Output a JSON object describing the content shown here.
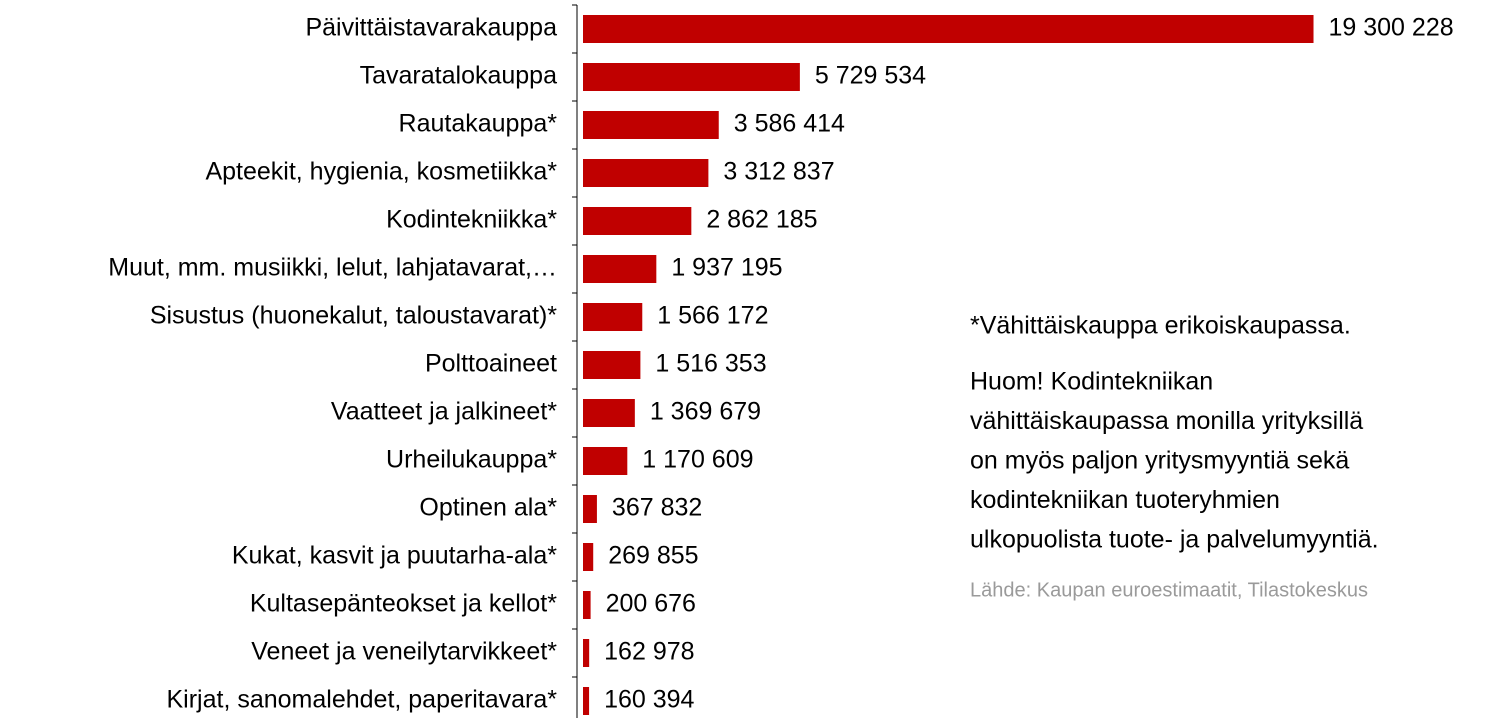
{
  "chart_data": {
    "type": "barh",
    "categories": [
      "Päivittäistavarakauppa",
      "Tavaratalokauppa",
      "Rautakauppa*",
      "Apteekit, hygienia, kosmetiikka*",
      "Kodintekniikka*",
      "Muut, mm. musiikki, lelut, lahjatavarat,…",
      "Sisustus (huonekalut, taloustavarat)*",
      "Polttoaineet",
      "Vaatteet ja jalkineet*",
      "Urheilukauppa*",
      "Optinen ala*",
      "Kukat, kasvit ja puutarha-ala*",
      "Kultasepänteokset ja kellot*",
      "Veneet ja veneilytarvikkeet*",
      "Kirjat, sanomalehdet, paperitavara*"
    ],
    "values": [
      19300228,
      5729534,
      3586414,
      3312837,
      2862185,
      1937195,
      1566172,
      1516353,
      1369679,
      1170609,
      367832,
      269855,
      200676,
      162978,
      160394
    ],
    "value_labels": [
      "19 300 228",
      "5 729 534",
      "3 586 414",
      "3 312 837",
      "2 862 185",
      "1 937 195",
      "1 566 172",
      "1 516 353",
      "1 369 679",
      "1 170 609",
      "367 832",
      "269 855",
      "200 676",
      "162 978",
      "160 394"
    ],
    "color": "#c00000",
    "xlim": [
      0,
      20000000
    ],
    "footnote": "*Vähittäiskauppa erikoiskaupassa.",
    "note_lines": [
      "Huom! Kodintekniikan",
      "vähittäiskaupassa monilla yrityksillä",
      "on myös paljon yritysmyyntiä sekä",
      "kodintekniikan tuoteryhmien",
      "ulkopuolista tuote- ja palvelumyyntiä."
    ],
    "source": "Lähde: Kaupan euroestimaatit, Tilastokeskus"
  }
}
